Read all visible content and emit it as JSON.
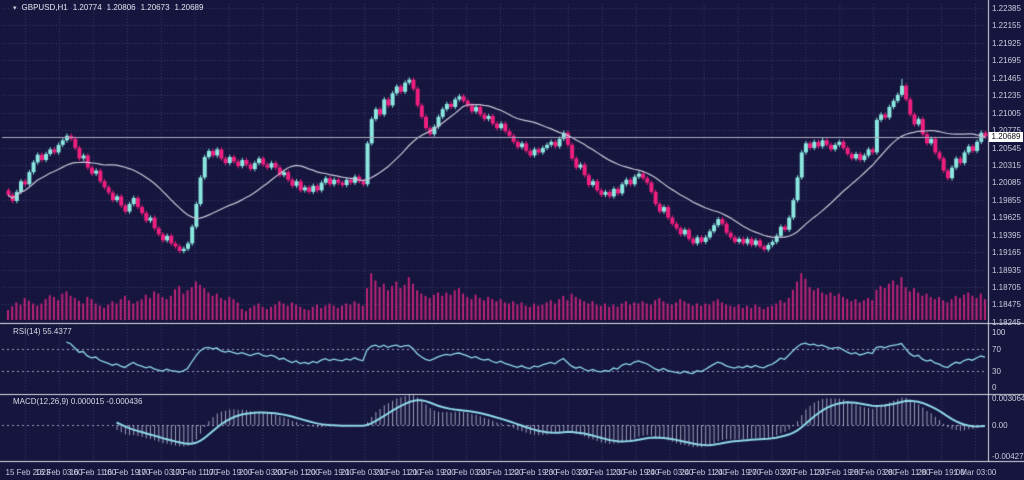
{
  "header": {
    "symbol": "GBPUSD,H1",
    "open": "1.20774",
    "high": "1.20806",
    "low": "1.20673",
    "close": "1.20689"
  },
  "price_axis": {
    "labels": [
      "1.22385",
      "1.22155",
      "1.21925",
      "1.21695",
      "1.21465",
      "1.21235",
      "1.21005",
      "1.20775",
      "1.20545",
      "1.20315",
      "1.20085",
      "1.19855",
      "1.19625",
      "1.19395",
      "1.19165",
      "1.18935",
      "1.18705",
      "1.18475",
      "1.18245"
    ],
    "current_price_tag": "1.20689"
  },
  "time_axis": {
    "labels": [
      "15 Feb 2023",
      "16 Feb 03:00",
      "16 Feb 11:00",
      "16 Feb 19:00",
      "17 Feb 03:00",
      "17 Feb 11:00",
      "17 Feb 19:00",
      "20 Feb 03:00",
      "20 Feb 11:00",
      "20 Feb 19:00",
      "21 Feb 03:00",
      "21 Feb 11:00",
      "21 Feb 19:00",
      "22 Feb 03:00",
      "22 Feb 11:00",
      "22 Feb 19:00",
      "23 Feb 03:00",
      "23 Feb 11:00",
      "23 Feb 19:00",
      "24 Feb 03:00",
      "24 Feb 11:00",
      "24 Feb 19:00",
      "27 Feb 03:00",
      "27 Feb 11:00",
      "27 Feb 19:00",
      "28 Feb 03:00",
      "28 Feb 11:00",
      "28 Feb 19:00",
      "1 Mar 03:00"
    ]
  },
  "rsi_panel": {
    "label": "RSI(14)",
    "value": "55.4377",
    "axis_labels": [
      "100",
      "70",
      "30",
      "0"
    ]
  },
  "macd_panel": {
    "label": "MACD(12,26,9)",
    "main_value": "0.000015",
    "signal_value": "-0.000436",
    "axis_labels": [
      "0.003064",
      "0.00",
      "-0.004279"
    ]
  },
  "colors": {
    "background": "#15153e",
    "grid": "#3c3c6c",
    "bull_candle": "#8be8e0",
    "bear_candle": "#ee1f7e",
    "ma_line": "#c9c4d6",
    "volume": "#bc2476",
    "indicator_line": "#8fd8e8",
    "macd_histogram": "#c2c2d4",
    "level_line": "#9a9ab8",
    "separator": "#dcdce6",
    "price_line": "#aaaabc",
    "axis_text": "#cdcedd"
  },
  "chart_data": {
    "type": "candlestick",
    "symbol": "GBPUSD",
    "timeframe": "H1",
    "title": "GBPUSD,H1 1.20774 1.20806 1.20673 1.20689",
    "y_axis": {
      "top": 1.22385,
      "bottom": 1.18245,
      "tick_step": 0.0023
    },
    "current_price": 1.20689,
    "rsi_levels": [
      70,
      30
    ],
    "indicators": {
      "rsi_period": 14,
      "macd": [
        12,
        26,
        9
      ],
      "ma_period": 24
    },
    "first_open": 1.1998,
    "wick_size": 0.0003,
    "wick_extras": {
      "214": 0.0006
    },
    "closes": [
      1.1992,
      1.1984,
      1.1996,
      1.201,
      1.2006,
      1.2022,
      1.2035,
      1.2045,
      1.2038,
      1.2046,
      1.2052,
      1.2048,
      1.2058,
      1.2064,
      1.207,
      1.2066,
      1.2054,
      1.204,
      1.2044,
      1.2028,
      1.202,
      1.2024,
      1.201,
      1.2002,
      1.1995,
      1.1985,
      1.199,
      1.1978,
      1.197,
      1.198,
      1.1988,
      1.1976,
      1.1968,
      1.1958,
      1.1962,
      1.1948,
      1.194,
      1.1932,
      1.1938,
      1.1928,
      1.1924,
      1.1918,
      1.1921,
      1.1928,
      1.195,
      1.198,
      1.2015,
      1.2042,
      1.205,
      1.2044,
      1.2052,
      1.204,
      1.2034,
      1.2042,
      1.2036,
      1.203,
      1.2038,
      1.2032,
      1.2026,
      1.2034,
      1.204,
      1.2032,
      1.2028,
      1.2034,
      1.2028,
      1.2018,
      1.2022,
      1.2012,
      1.2004,
      1.201,
      1.1998,
      1.2002,
      1.1996,
      1.2004,
      1.1998,
      1.2008,
      1.2014,
      1.2006,
      1.2012,
      1.2008,
      1.2005,
      1.2012,
      1.2008,
      1.2016,
      1.201,
      1.2006,
      1.206,
      1.2092,
      1.2105,
      1.2098,
      1.2118,
      1.211,
      1.2126,
      1.2135,
      1.2128,
      1.214,
      1.2144,
      1.2132,
      1.211,
      1.2095,
      1.208,
      1.2072,
      1.2082,
      1.2095,
      1.2105,
      1.2112,
      1.2108,
      1.2118,
      1.2122,
      1.2116,
      1.211,
      1.2102,
      1.2108,
      1.2098,
      1.2092,
      1.2096,
      1.2086,
      1.208,
      1.2086,
      1.2076,
      1.207,
      1.2062,
      1.2055,
      1.206,
      1.205,
      1.2044,
      1.2052,
      1.2048,
      1.2054,
      1.2058,
      1.2062,
      1.2056,
      1.2066,
      1.2074,
      1.2058,
      1.204,
      1.2028,
      1.2032,
      1.2018,
      1.2005,
      1.201,
      1.1998,
      1.1992,
      1.1996,
      1.199,
      1.2,
      1.1994,
      1.2006,
      1.2012,
      1.2006,
      1.2016,
      1.202,
      1.2014,
      1.2008,
      1.1996,
      1.198,
      1.197,
      1.1976,
      1.1962,
      1.1954,
      1.1948,
      1.194,
      1.1946,
      1.1934,
      1.1928,
      1.1936,
      1.193,
      1.1936,
      1.1944,
      1.1952,
      1.196,
      1.1954,
      1.1942,
      1.1936,
      1.193,
      1.1934,
      1.1928,
      1.1934,
      1.1926,
      1.1932,
      1.1924,
      1.192,
      1.1926,
      1.193,
      1.1938,
      1.195,
      1.1946,
      1.1962,
      1.1985,
      1.2015,
      1.2048,
      1.206,
      1.2054,
      1.2062,
      1.2056,
      1.2064,
      1.2058,
      1.2052,
      1.2058,
      1.2062,
      1.2054,
      1.2046,
      1.204,
      1.2046,
      1.2038,
      1.2044,
      1.2052,
      1.2048,
      1.2091,
      1.2098,
      1.2094,
      1.2108,
      1.2116,
      1.2124,
      1.2136,
      1.2118,
      1.2098,
      1.2085,
      1.2092,
      1.2072,
      1.206,
      1.2066,
      1.2048,
      1.204,
      1.2024,
      1.2014,
      1.2028,
      1.204,
      1.2034,
      1.2048,
      1.2056,
      1.205,
      1.2062,
      1.2074,
      1.2069
    ],
    "volumes": [
      18,
      25,
      32,
      28,
      40,
      35,
      30,
      26,
      30,
      38,
      45,
      42,
      36,
      48,
      52,
      44,
      40,
      35,
      30,
      42,
      38,
      30,
      26,
      22,
      28,
      34,
      30,
      38,
      44,
      36,
      30,
      34,
      38,
      46,
      40,
      52,
      48,
      42,
      38,
      44,
      56,
      62,
      48,
      54,
      60,
      70,
      64,
      58,
      50,
      44,
      48,
      40,
      36,
      42,
      38,
      32,
      20,
      16,
      22,
      26,
      30,
      24,
      20,
      24,
      28,
      34,
      30,
      26,
      32,
      28,
      24,
      20,
      18,
      24,
      28,
      22,
      26,
      30,
      26,
      22,
      26,
      30,
      28,
      34,
      30,
      26,
      58,
      85,
      72,
      60,
      66,
      54,
      62,
      70,
      58,
      64,
      78,
      66,
      54,
      48,
      44,
      40,
      46,
      50,
      44,
      50,
      46,
      54,
      58,
      48,
      42,
      38,
      46,
      40,
      36,
      42,
      38,
      34,
      38,
      32,
      30,
      34,
      28,
      32,
      26,
      24,
      30,
      26,
      28,
      32,
      36,
      30,
      38,
      44,
      36,
      48,
      42,
      38,
      34,
      30,
      34,
      28,
      26,
      30,
      24,
      28,
      24,
      30,
      34,
      28,
      32,
      30,
      34,
      30,
      28,
      36,
      40,
      34,
      30,
      28,
      32,
      38,
      34,
      30,
      26,
      30,
      26,
      30,
      28,
      34,
      38,
      32,
      28,
      26,
      24,
      28,
      22,
      26,
      22,
      28,
      24,
      20,
      24,
      26,
      30,
      36,
      32,
      40,
      55,
      70,
      85,
      75,
      60,
      54,
      58,
      50,
      46,
      50,
      44,
      48,
      42,
      38,
      34,
      38,
      32,
      36,
      40,
      36,
      55,
      62,
      58,
      66,
      72,
      64,
      78,
      60,
      52,
      58,
      50,
      44,
      48,
      42,
      38,
      42,
      36,
      32,
      38,
      44,
      40,
      46,
      50,
      44,
      40,
      48,
      38
    ]
  }
}
